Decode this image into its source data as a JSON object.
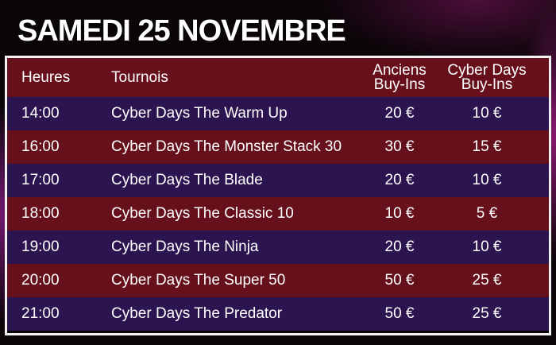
{
  "header": {
    "title": "SAMEDI 25 NOVEMBRE"
  },
  "table": {
    "columns": [
      [
        "Heures"
      ],
      [
        "Tournois"
      ],
      [
        "Anciens",
        "Buy-Ins"
      ],
      [
        "Cyber Days",
        "Buy-Ins"
      ]
    ],
    "rows": [
      [
        "14:00",
        "Cyber Days The Warm Up",
        "20 €",
        "10 €"
      ],
      [
        "16:00",
        "Cyber Days The Monster Stack 30",
        "30 €",
        "15 €"
      ],
      [
        "17:00",
        "Cyber Days The Blade",
        "20 €",
        "10 €"
      ],
      [
        "18:00",
        "Cyber Days The Classic 10",
        "10 €",
        "5 €"
      ],
      [
        "19:00",
        "Cyber Days The Ninja",
        "20 €",
        "10 €"
      ],
      [
        "20:00",
        "Cyber Days The Super 50",
        "50 €",
        "25 €"
      ],
      [
        "21:00",
        "Cyber Days The Predator",
        "50 €",
        "25 €"
      ]
    ]
  }
}
